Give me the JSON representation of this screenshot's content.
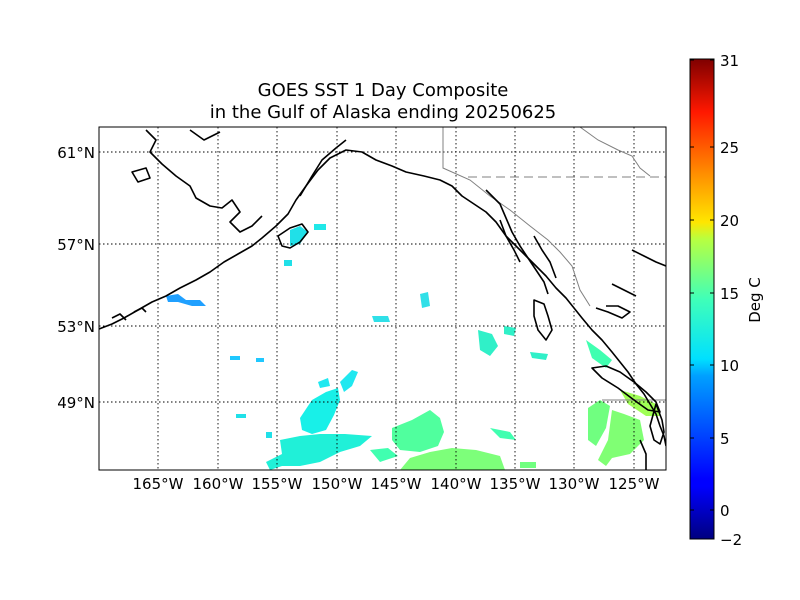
{
  "map": {
    "title_line1": "GOES SST 1 Day Composite",
    "title_line2": "in the Gulf of Alaska ending 20250625",
    "lat_labels": [
      "61°N",
      "57°N",
      "53°N",
      "49°N"
    ],
    "lon_labels": [
      "165°W",
      "160°W",
      "155°W",
      "150°W",
      "145°W",
      "140°W",
      "135°W",
      "130°W",
      "125°W"
    ],
    "grid": true,
    "coastline_color": "#000000",
    "border_color": "#808080",
    "background_color": "#ffffff"
  },
  "colorbar": {
    "label": "Deg C",
    "ticks": [
      "31",
      "25",
      "20",
      "15",
      "10",
      "5",
      "0",
      "−2"
    ],
    "range": [
      -2,
      31
    ],
    "colormap": "jet"
  },
  "chart_data": {
    "type": "heatmap",
    "title": "GOES SST 1 Day Composite\nin the Gulf of Alaska ending 20250625",
    "xlabel": "",
    "ylabel": "",
    "x_ticks": [
      "165°W",
      "160°W",
      "155°W",
      "150°W",
      "145°W",
      "140°W",
      "135°W",
      "130°W",
      "125°W"
    ],
    "y_ticks": [
      "61°N",
      "57°N",
      "53°N",
      "49°N"
    ],
    "colorbar_label": "Deg C",
    "value_range": [
      -2,
      31
    ],
    "regions": [
      {
        "area": "Aleutians near 162°W 54°N",
        "value": 7
      },
      {
        "area": "Kodiak area near 150°W 58°N",
        "value": 11
      },
      {
        "area": "central Gulf near 150°W 49°N",
        "value": 10
      },
      {
        "area": "open Gulf near 141°W 47°N",
        "value": 12.5
      },
      {
        "area": "southern Gulf near 138°W 46°N",
        "value": 14
      },
      {
        "area": "off Washington/Oregon near 129°W 47°N",
        "value": 14.5
      },
      {
        "area": "Strait of Georgia near 124°W 49°N",
        "value": 16
      },
      {
        "area": "Haida Gwaii coast near 132°W 52°N",
        "value": 12
      }
    ]
  }
}
